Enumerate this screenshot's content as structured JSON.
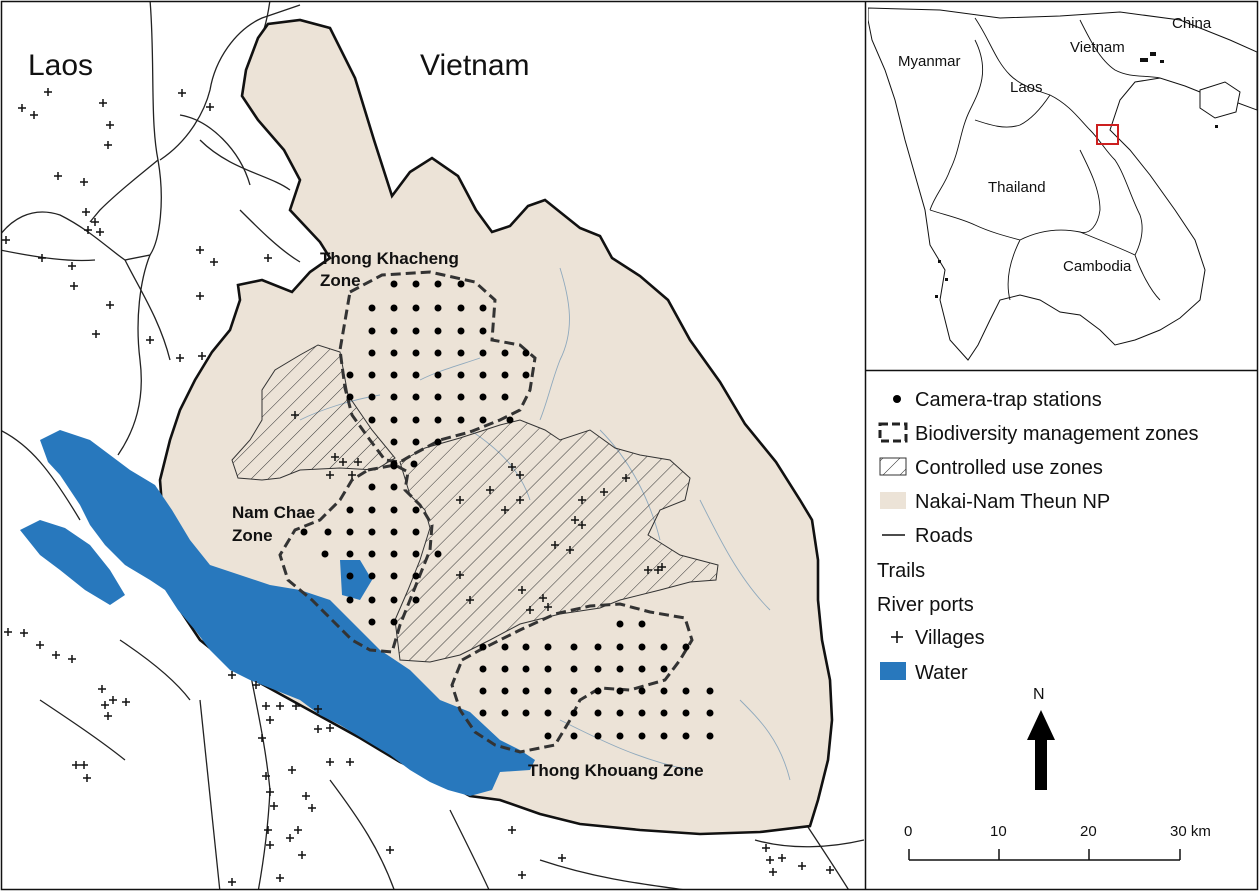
{
  "map": {
    "countries": [
      "Laos",
      "Vietnam"
    ],
    "zones": {
      "thong_khacheng_line1": "Thong Khacheng",
      "thong_khacheng_line2": "Zone",
      "nam_chae_line1": "Nam Chae",
      "nam_chae_line2": "Zone",
      "thong_khouang": "Thong Khouang Zone"
    },
    "villages_count_note": "",
    "colors": {
      "park": "#ece3d7",
      "water": "#2878bd",
      "boundary": "#111111",
      "rivers": "#8fa9bd",
      "inset_box": "#cc1f1f"
    }
  },
  "inset": {
    "countries": [
      "China",
      "Myanmar",
      "Vietnam",
      "Laos",
      "Thailand",
      "Cambodia"
    ]
  },
  "legend": {
    "items": [
      {
        "label": "Camera-trap stations",
        "symbol": "dot"
      },
      {
        "label": "Biodiversity management zones",
        "symbol": "dashed-box"
      },
      {
        "label": "Controlled use zones",
        "symbol": "hatched-box"
      },
      {
        "label": "Nakai-Nam Theun NP",
        "symbol": "park-box"
      },
      {
        "label": "Roads",
        "symbol": "line"
      },
      {
        "label": "Trails",
        "symbol": "none"
      },
      {
        "label": "River ports",
        "symbol": "none"
      },
      {
        "label": "Villages",
        "symbol": "plus"
      },
      {
        "label": "Water",
        "symbol": "water-box"
      }
    ]
  },
  "north_arrow": {
    "label": "N"
  },
  "scale_bar": {
    "ticks": [
      "0",
      "10",
      "20",
      "30 km"
    ]
  }
}
